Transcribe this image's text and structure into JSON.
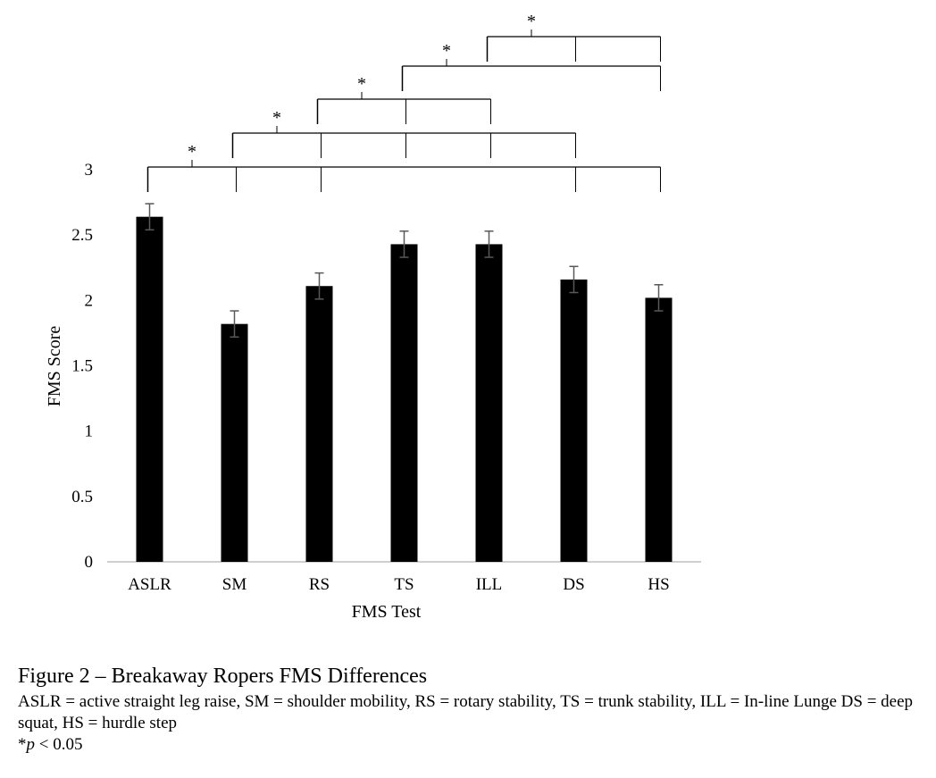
{
  "chart_data": {
    "type": "bar",
    "categories": [
      "ASLR",
      "SM",
      "RS",
      "TS",
      "ILL",
      "DS",
      "HS"
    ],
    "values": [
      2.64,
      1.82,
      2.11,
      2.43,
      2.43,
      2.16,
      2.02
    ],
    "error": [
      0.1,
      0.1,
      0.1,
      0.1,
      0.1,
      0.1,
      0.1
    ],
    "ylim": [
      0,
      3
    ],
    "yticks": [
      "0",
      "0.5",
      "1",
      "1.5",
      "2",
      "2.5",
      "3"
    ],
    "ytick_values": [
      0,
      0.5,
      1,
      1.5,
      2,
      2.5,
      3
    ],
    "xlabel": "FMS Test",
    "ylabel": "FMS Score",
    "bar_color": "#000000",
    "errorbar_color": "#595959",
    "axis_color": "#bfbfbf",
    "grid": false,
    "significance": [
      {
        "from": "ASLR",
        "to": [
          "SM",
          "RS",
          "DS",
          "HS"
        ],
        "label": "*"
      },
      {
        "from": "SM",
        "to": [
          "RS",
          "TS",
          "ILL",
          "DS"
        ],
        "label": "*"
      },
      {
        "from": "RS",
        "to": [
          "TS",
          "ILL"
        ],
        "label": "*"
      },
      {
        "from": "TS",
        "to": [
          "HS"
        ],
        "label": "*"
      },
      {
        "from": "ILL",
        "to": [
          "DS",
          "HS"
        ],
        "label": "*"
      }
    ]
  },
  "caption": {
    "title": "Figure 2 – Breakaway Ropers FMS Differences",
    "body": "ASLR = active straight leg raise, SM = shoulder mobility, RS = rotary stability, TS = trunk stability, ILL = In-line Lunge DS = deep squat, HS = hurdle step",
    "note_star": "*",
    "note_p": "p",
    "note_rest": " < 0.05"
  }
}
